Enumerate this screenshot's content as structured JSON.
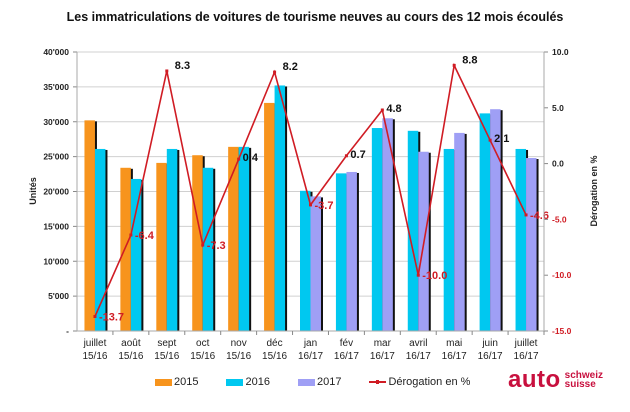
{
  "chart_data": {
    "type": "bar",
    "title": "Les immatriculations de voitures de tourisme neuves au cours des 12 mois écoulés",
    "xlabel": "",
    "ylabel": "Unités",
    "y2label": "Dérogation en %",
    "ylim": [
      0,
      40000
    ],
    "y2lim": [
      -15.0,
      10.0
    ],
    "grid": true,
    "legend_position": "bottom",
    "yticks": [
      "-",
      "5'000",
      "10'000",
      "15'000",
      "20'000",
      "25'000",
      "30'000",
      "35'000",
      "40'000"
    ],
    "y2ticks": [
      "-15.0",
      "-10.0",
      "-5.0",
      "0.0",
      "5.0",
      "10.0"
    ],
    "categories": [
      [
        "juillet",
        "15/16"
      ],
      [
        "août",
        "15/16"
      ],
      [
        "sept",
        "15/16"
      ],
      [
        "oct",
        "15/16"
      ],
      [
        "nov",
        "15/16"
      ],
      [
        "déc",
        "15/16"
      ],
      [
        "jan",
        "16/17"
      ],
      [
        "fév",
        "16/17"
      ],
      [
        "mar",
        "16/17"
      ],
      [
        "avril",
        "16/17"
      ],
      [
        "mai",
        "16/17"
      ],
      [
        "juin",
        "16/17"
      ],
      [
        "juillet",
        "16/17"
      ]
    ],
    "series": [
      {
        "name": "2015",
        "color": "#f7941d",
        "values": [
          30200,
          23400,
          24100,
          25200,
          26400,
          32700,
          null,
          null,
          null,
          null,
          null,
          null,
          null
        ]
      },
      {
        "name": "2016",
        "color": "#00c8f0",
        "values": [
          26100,
          21800,
          26100,
          23400,
          26400,
          35200,
          20100,
          22600,
          29100,
          28700,
          26100,
          31200,
          26100
        ]
      },
      {
        "name": "2017",
        "color": "#9f9ff5",
        "values": [
          null,
          null,
          null,
          null,
          null,
          null,
          19300,
          22800,
          30500,
          25700,
          28400,
          31800,
          24800
        ]
      }
    ],
    "line_series": {
      "name": "Dérogation en %",
      "color": "#d01c24",
      "axis": "right",
      "values": [
        -13.7,
        -6.4,
        8.3,
        -7.3,
        0.4,
        8.2,
        -3.7,
        0.7,
        4.8,
        -10.0,
        8.8,
        2.1,
        -4.6
      ],
      "labels": [
        "-13.7",
        "-6.4",
        "8.3",
        "-7.3",
        "0.4",
        "8.2",
        "-3.7",
        "0.7",
        "4.8",
        "-10.0",
        "8.8",
        "2.1",
        "-4.6"
      ]
    }
  },
  "legend": {
    "items": [
      {
        "label": "2015",
        "color": "#f7941d"
      },
      {
        "label": "2016",
        "color": "#00c8f0"
      },
      {
        "label": "2017",
        "color": "#9f9ff5"
      },
      {
        "label": "Dérogation en %",
        "color": "#d01c24"
      }
    ]
  },
  "logo": {
    "main": "auto",
    "line1": "schweiz",
    "line2": "suisse",
    "color": "#c8103e"
  }
}
